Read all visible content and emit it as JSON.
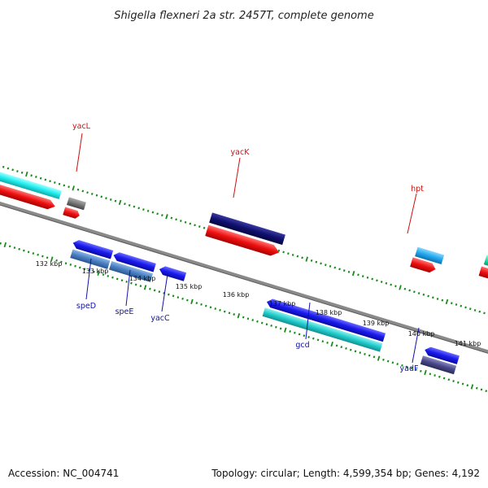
{
  "title": "Shigella flexneri 2a str. 2457T, complete genome",
  "footer": {
    "accession": "Accession: NC_004741",
    "summary": "Topology: circular; Length: 4,599,354 bp; Genes: 4,192"
  },
  "colors": {
    "backbone": "#8a8a8a",
    "backbone_dark": "#5a5a5a",
    "ticks": "#1a8a1a",
    "upper_label": "#cc1111",
    "lower_label": "#1111aa",
    "red_feature": "#ee1111",
    "blue_feature": "#1a1aee",
    "navy_feature": "#101070",
    "cyan_feature": "#22cccc",
    "steel_feature": "#4a7fc1",
    "skyblue_feature": "#22aaee",
    "teal_feature": "#22ddaa",
    "slate_feature": "#484888",
    "gray_feature": "#777777",
    "aqua_feature": "#22eeee"
  },
  "ticks": {
    "labels": [
      "132 kbp",
      "133 kbp",
      "134 kbp",
      "135 kbp",
      "136 kbp",
      "137 kbp",
      "138 kbp",
      "139 kbp",
      "140 kbp",
      "141 kbp"
    ]
  },
  "genes_upper": [
    {
      "name": "yacL",
      "icon": "gene-callout-line"
    },
    {
      "name": "yacK",
      "icon": "gene-callout-line"
    },
    {
      "name": "hpt",
      "icon": "gene-callout-line"
    }
  ],
  "genes_lower": [
    {
      "name": "speD",
      "icon": "gene-callout-line"
    },
    {
      "name": "speE",
      "icon": "gene-callout-line"
    },
    {
      "name": "yacC",
      "icon": "gene-callout-line"
    },
    {
      "name": "gcd",
      "icon": "gene-callout-line"
    },
    {
      "name": "yadF",
      "icon": "gene-callout-line"
    }
  ]
}
